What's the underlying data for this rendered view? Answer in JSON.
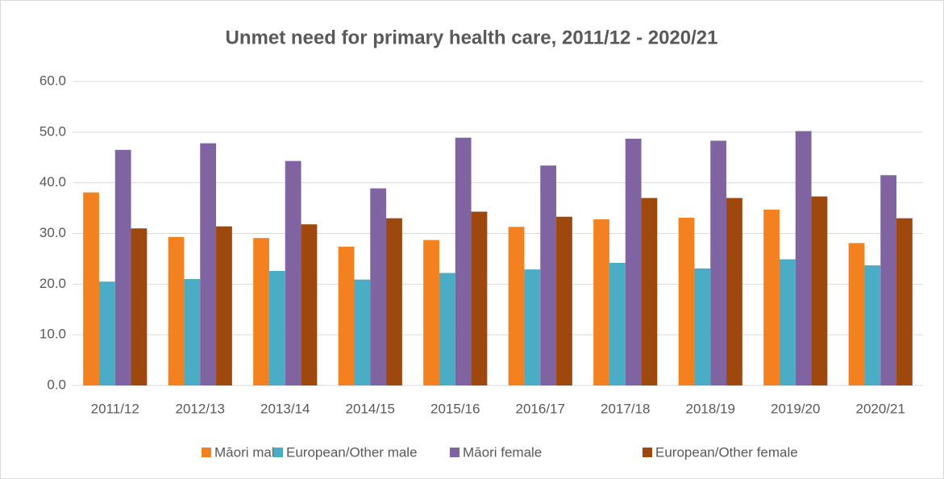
{
  "chart_data": {
    "type": "bar",
    "title": "Unmet need for primary health care, 2011/12 - 2020/21",
    "categories": [
      "2011/12",
      "2012/13",
      "2013/14",
      "2014/15",
      "2015/16",
      "2016/17",
      "2017/18",
      "2018/19",
      "2019/20",
      "2020/21"
    ],
    "series": [
      {
        "name": "Māori male",
        "color": "#f4811f",
        "values": [
          38.1,
          29.3,
          29.1,
          27.4,
          28.7,
          31.3,
          32.8,
          33.1,
          34.7,
          28.1
        ]
      },
      {
        "name": "European/Other male",
        "color": "#4bacc6",
        "values": [
          20.5,
          21.0,
          22.6,
          20.9,
          22.2,
          22.9,
          24.2,
          23.1,
          24.9,
          23.7
        ]
      },
      {
        "name": "Māori female",
        "color": "#8064a2",
        "values": [
          46.5,
          47.8,
          44.3,
          38.9,
          48.9,
          43.4,
          48.7,
          48.3,
          50.2,
          41.5
        ]
      },
      {
        "name": "European/Other female",
        "color": "#9e480e",
        "values": [
          31.0,
          31.4,
          31.8,
          33.0,
          34.3,
          33.3,
          37.0,
          37.0,
          37.3,
          33.0
        ]
      }
    ],
    "ylim": [
      0,
      60
    ],
    "yticks": [
      {
        "value": 0,
        "label": "0.0"
      },
      {
        "value": 10,
        "label": "10.0"
      },
      {
        "value": 20,
        "label": "20.0"
      },
      {
        "value": 30,
        "label": "30.0"
      },
      {
        "value": 40,
        "label": "40.0"
      },
      {
        "value": 50,
        "label": "50.0"
      },
      {
        "value": 60,
        "label": "60.0"
      }
    ],
    "grid": true,
    "legend": "bottom"
  }
}
